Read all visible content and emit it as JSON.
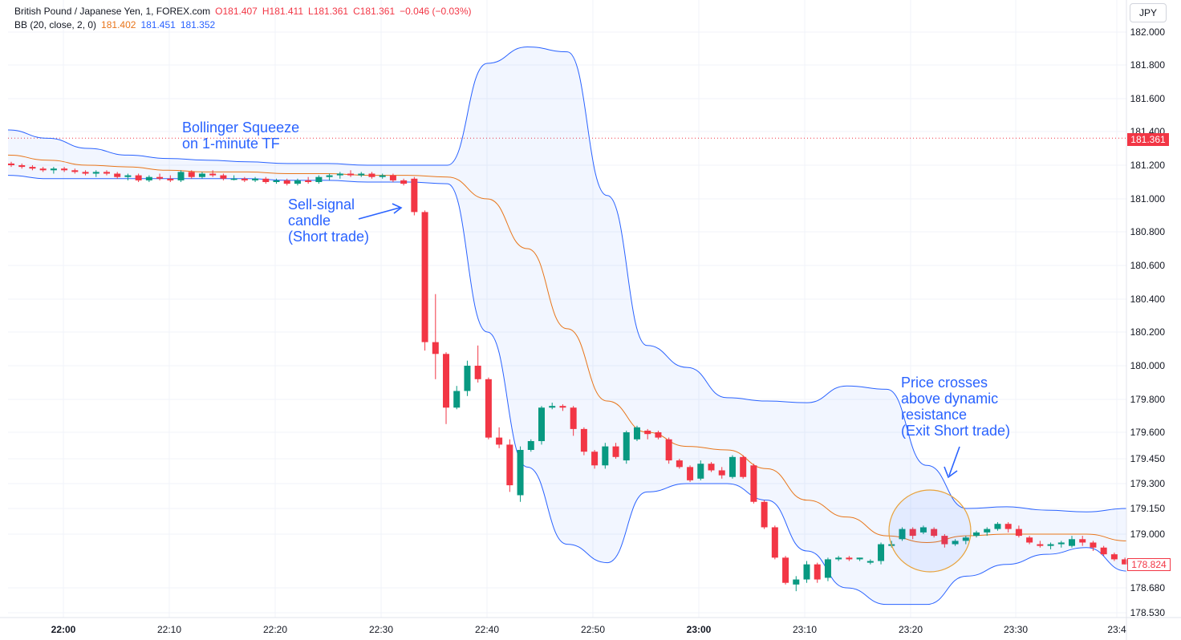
{
  "header": {
    "symbol": "British Pound / Japanese Yen, 1, FOREX.com",
    "open": "O181.407",
    "high": "H181.411",
    "low": "L181.361",
    "close": "C181.361",
    "change": "−0.046 (−0.03%)",
    "indicator_label": "BB (20, close, 2, 0)",
    "indicator_mid": "181.402",
    "indicator_upper": "181.451",
    "indicator_lower": "181.352"
  },
  "currency": "JPY",
  "last_price_tag": "181.361",
  "current_price_tag": "178.824",
  "annotations": {
    "squeeze_line1": "Bollinger Squeeze",
    "squeeze_line2": "on 1-minute TF",
    "sell_line1": "Sell-signal",
    "sell_line2": "candle",
    "sell_line3": "(Short trade)",
    "exit_line1": "Price crosses",
    "exit_line2": "above dynamic",
    "exit_line3": "resistance",
    "exit_line4": "(Exit Short trade)"
  },
  "colors": {
    "up": "#089981",
    "down": "#f23645",
    "bb_basis": "#e8751a",
    "bb_band": "#2962ff",
    "bb_fill": "rgba(41,98,255,0.06)",
    "circle": "#e8a33d"
  },
  "chart_data": {
    "type": "candlestick",
    "ylim": [
      178.53,
      182.0
    ],
    "y_ticks": [
      "182.000",
      "181.800",
      "181.600",
      "181.400",
      "181.200",
      "181.000",
      "180.800",
      "180.600",
      "180.400",
      "180.200",
      "180.000",
      "179.800",
      "179.600",
      "179.450",
      "179.300",
      "179.150",
      "179.000",
      "178.680",
      "178.530"
    ],
    "x_ticks": [
      "22:00",
      "22:10",
      "22:20",
      "22:30",
      "22:40",
      "22:50",
      "23:00",
      "23:10",
      "23:20",
      "23:30",
      "23:4"
    ],
    "candles": [
      [
        181.21,
        181.22,
        181.19,
        181.2
      ],
      [
        181.2,
        181.21,
        181.18,
        181.19
      ],
      [
        181.19,
        181.2,
        181.17,
        181.18
      ],
      [
        181.18,
        181.19,
        181.16,
        181.17
      ],
      [
        181.17,
        181.19,
        181.15,
        181.18
      ],
      [
        181.18,
        181.19,
        181.16,
        181.17
      ],
      [
        181.17,
        181.18,
        181.15,
        181.16
      ],
      [
        181.16,
        181.17,
        181.14,
        181.15
      ],
      [
        181.15,
        181.17,
        181.13,
        181.16
      ],
      [
        181.16,
        181.17,
        181.14,
        181.15
      ],
      [
        181.15,
        181.16,
        181.12,
        181.13
      ],
      [
        181.13,
        181.15,
        181.11,
        181.14
      ],
      [
        181.14,
        181.15,
        181.1,
        181.11
      ],
      [
        181.11,
        181.14,
        181.1,
        181.13
      ],
      [
        181.13,
        181.15,
        181.11,
        181.12
      ],
      [
        181.12,
        181.14,
        181.1,
        181.11
      ],
      [
        181.11,
        181.17,
        181.1,
        181.16
      ],
      [
        181.16,
        181.17,
        181.12,
        181.13
      ],
      [
        181.13,
        181.16,
        181.12,
        181.15
      ],
      [
        181.15,
        181.17,
        181.13,
        181.14
      ],
      [
        181.14,
        181.15,
        181.11,
        181.12
      ],
      [
        181.12,
        181.14,
        181.11,
        181.12
      ],
      [
        181.12,
        181.13,
        181.1,
        181.11
      ],
      [
        181.11,
        181.13,
        181.1,
        181.12
      ],
      [
        181.12,
        181.13,
        181.09,
        181.1
      ],
      [
        181.1,
        181.12,
        181.09,
        181.11
      ],
      [
        181.11,
        181.12,
        181.08,
        181.09
      ],
      [
        181.09,
        181.12,
        181.08,
        181.11
      ],
      [
        181.11,
        181.13,
        181.09,
        181.1
      ],
      [
        181.1,
        181.14,
        181.09,
        181.13
      ],
      [
        181.13,
        181.15,
        181.11,
        181.14
      ],
      [
        181.14,
        181.16,
        181.12,
        181.15
      ],
      [
        181.15,
        181.17,
        181.13,
        181.14
      ],
      [
        181.14,
        181.16,
        181.13,
        181.15
      ],
      [
        181.15,
        181.16,
        181.12,
        181.13
      ],
      [
        181.13,
        181.15,
        181.12,
        181.14
      ],
      [
        181.14,
        181.15,
        181.1,
        181.11
      ],
      [
        181.11,
        181.12,
        181.08,
        181.09
      ],
      [
        181.12,
        181.13,
        180.9,
        180.92
      ],
      [
        180.92,
        180.93,
        180.09,
        180.14
      ],
      [
        180.14,
        180.43,
        179.92,
        180.07
      ],
      [
        180.07,
        180.08,
        179.65,
        179.75
      ],
      [
        179.75,
        179.88,
        179.74,
        179.85
      ],
      [
        179.85,
        180.03,
        179.82,
        180.0
      ],
      [
        180.0,
        180.12,
        179.9,
        179.92
      ],
      [
        179.92,
        179.93,
        179.56,
        179.57
      ],
      [
        179.57,
        179.63,
        179.51,
        179.53
      ],
      [
        179.53,
        179.56,
        179.25,
        179.29
      ],
      [
        179.23,
        179.52,
        179.19,
        179.5
      ],
      [
        179.5,
        179.56,
        179.49,
        179.55
      ],
      [
        179.55,
        179.76,
        179.53,
        179.75
      ],
      [
        179.75,
        179.78,
        179.74,
        179.76
      ],
      [
        179.76,
        179.77,
        179.73,
        179.75
      ],
      [
        179.75,
        179.76,
        179.58,
        179.62
      ],
      [
        179.62,
        179.63,
        179.47,
        179.49
      ],
      [
        179.49,
        179.5,
        179.39,
        179.41
      ],
      [
        179.41,
        179.54,
        179.39,
        179.52
      ],
      [
        179.52,
        179.54,
        179.45,
        179.46
      ],
      [
        179.44,
        179.61,
        179.42,
        179.6
      ],
      [
        179.56,
        179.64,
        179.55,
        179.63
      ],
      [
        179.61,
        179.62,
        179.56,
        179.59
      ],
      [
        179.6,
        179.61,
        179.56,
        179.57
      ],
      [
        179.56,
        179.57,
        179.42,
        179.44
      ],
      [
        179.44,
        179.45,
        179.39,
        179.4
      ],
      [
        179.4,
        179.41,
        179.31,
        179.32
      ],
      [
        179.33,
        179.44,
        179.32,
        179.42
      ],
      [
        179.42,
        179.43,
        179.37,
        179.38
      ],
      [
        179.38,
        179.4,
        179.33,
        179.35
      ],
      [
        179.34,
        179.47,
        179.33,
        179.46
      ],
      [
        179.46,
        179.47,
        179.33,
        179.34
      ],
      [
        179.41,
        179.42,
        179.18,
        179.19
      ],
      [
        179.19,
        179.2,
        179.03,
        179.04
      ],
      [
        179.04,
        179.05,
        178.85,
        178.86
      ],
      [
        178.86,
        178.87,
        178.7,
        178.71
      ],
      [
        178.7,
        178.75,
        178.66,
        178.73
      ],
      [
        178.73,
        178.84,
        178.71,
        178.82
      ],
      [
        178.82,
        178.83,
        178.71,
        178.73
      ],
      [
        178.74,
        178.86,
        178.72,
        178.85
      ],
      [
        178.85,
        178.87,
        178.84,
        178.86
      ],
      [
        178.86,
        178.87,
        178.84,
        178.85
      ],
      [
        178.85,
        178.86,
        178.84,
        178.86
      ],
      [
        178.83,
        178.85,
        178.82,
        178.84
      ],
      [
        178.84,
        178.95,
        178.82,
        178.94
      ],
      [
        178.93,
        178.96,
        178.92,
        178.94
      ],
      [
        178.97,
        179.04,
        178.96,
        179.03
      ],
      [
        179.03,
        179.04,
        178.97,
        178.99
      ],
      [
        179.01,
        179.05,
        179.0,
        179.04
      ],
      [
        179.03,
        179.04,
        178.98,
        178.99
      ],
      [
        178.99,
        179.0,
        178.92,
        178.94
      ],
      [
        178.94,
        178.97,
        178.93,
        178.96
      ],
      [
        178.96,
        178.99,
        178.94,
        178.98
      ],
      [
        178.99,
        179.02,
        178.98,
        179.01
      ],
      [
        179.01,
        179.04,
        178.99,
        179.03
      ],
      [
        179.03,
        179.07,
        179.02,
        179.06
      ],
      [
        179.06,
        179.07,
        179.01,
        179.03
      ],
      [
        179.03,
        179.05,
        178.98,
        178.99
      ],
      [
        178.98,
        178.99,
        178.94,
        178.95
      ],
      [
        178.94,
        178.96,
        178.92,
        178.93
      ],
      [
        178.93,
        178.95,
        178.91,
        178.94
      ],
      [
        178.94,
        178.96,
        178.92,
        178.95
      ],
      [
        178.93,
        178.99,
        178.92,
        178.97
      ],
      [
        178.97,
        178.99,
        178.93,
        178.95
      ],
      [
        178.95,
        178.96,
        178.9,
        178.92
      ],
      [
        178.92,
        178.93,
        178.87,
        178.88
      ],
      [
        178.88,
        178.89,
        178.84,
        178.85
      ],
      [
        178.85,
        178.86,
        178.82,
        178.82
      ]
    ],
    "bb_upper": [
      181.41,
      181.36,
      181.3,
      181.26,
      181.24,
      181.23,
      181.22,
      181.21,
      181.21,
      181.2,
      181.2,
      181.2,
      181.81,
      181.91,
      181.88,
      181.02,
      180.12,
      179.99,
      179.81,
      179.79,
      179.78,
      179.88,
      179.86,
      179.41,
      179.15,
      179.16,
      179.14,
      179.13,
      179.15
    ],
    "bb_mid": [
      181.26,
      181.23,
      181.2,
      181.19,
      181.17,
      181.16,
      181.16,
      181.15,
      181.15,
      181.14,
      181.14,
      181.13,
      181.0,
      180.7,
      180.22,
      179.79,
      179.6,
      179.52,
      179.5,
      179.39,
      179.2,
      179.1,
      178.99,
      178.95,
      178.99,
      179.0,
      179.0,
      179.0,
      178.96
    ],
    "bb_lower": [
      181.14,
      181.12,
      181.12,
      181.12,
      181.12,
      181.12,
      181.12,
      181.11,
      181.11,
      181.1,
      181.1,
      181.09,
      180.2,
      179.4,
      178.94,
      178.83,
      179.25,
      179.3,
      179.3,
      179.2,
      178.9,
      178.68,
      178.58,
      178.58,
      178.75,
      178.82,
      178.88,
      178.92,
      178.78
    ]
  }
}
